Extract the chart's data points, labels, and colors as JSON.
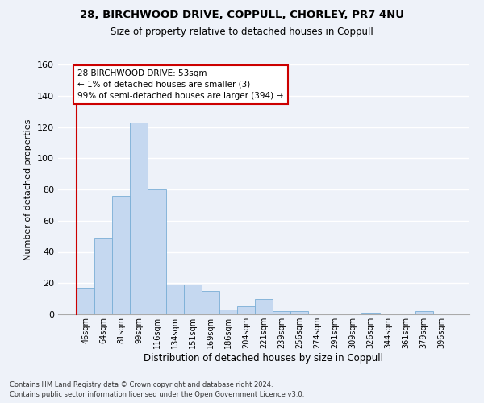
{
  "title1": "28, BIRCHWOOD DRIVE, COPPULL, CHORLEY, PR7 4NU",
  "title2": "Size of property relative to detached houses in Coppull",
  "xlabel": "Distribution of detached houses by size in Coppull",
  "ylabel": "Number of detached properties",
  "bar_color": "#c5d8f0",
  "bar_edge_color": "#7aaed6",
  "categories": [
    "46sqm",
    "64sqm",
    "81sqm",
    "99sqm",
    "116sqm",
    "134sqm",
    "151sqm",
    "169sqm",
    "186sqm",
    "204sqm",
    "221sqm",
    "239sqm",
    "256sqm",
    "274sqm",
    "291sqm",
    "309sqm",
    "326sqm",
    "344sqm",
    "361sqm",
    "379sqm",
    "396sqm"
  ],
  "values": [
    17,
    49,
    76,
    123,
    80,
    19,
    19,
    15,
    3,
    5,
    10,
    2,
    2,
    0,
    0,
    0,
    1,
    0,
    0,
    2,
    0
  ],
  "ylim": [
    0,
    160
  ],
  "yticks": [
    0,
    20,
    40,
    60,
    80,
    100,
    120,
    140,
    160
  ],
  "annotation_line1": "28 BIRCHWOOD DRIVE: 53sqm",
  "annotation_line2": "← 1% of detached houses are smaller (3)",
  "annotation_line3": "99% of semi-detached houses are larger (394) →",
  "annotation_box_color": "#ffffff",
  "annotation_box_edge_color": "#cc0000",
  "vline_color": "#cc0000",
  "footer1": "Contains HM Land Registry data © Crown copyright and database right 2024.",
  "footer2": "Contains public sector information licensed under the Open Government Licence v3.0.",
  "background_color": "#eef2f9",
  "grid_color": "#ffffff"
}
